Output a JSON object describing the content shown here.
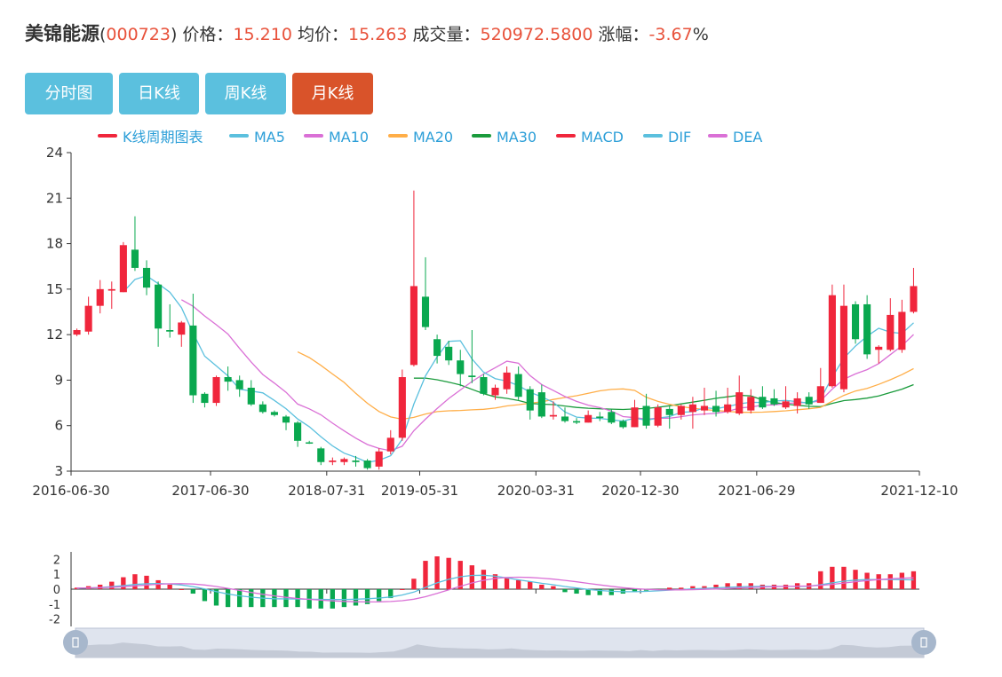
{
  "header": {
    "name": "美锦能源",
    "open_paren": "(",
    "code": "000723",
    "close_paren": ")",
    "price_label": "价格：",
    "price": "15.210",
    "avg_label": "均价：",
    "avg": "15.263",
    "volume_label": "成交量：",
    "volume": "520972.5800",
    "change_label": "涨幅：",
    "change": "-3.67",
    "change_unit": "%"
  },
  "tabs": [
    {
      "label": "分时图",
      "active": false
    },
    {
      "label": "日K线",
      "active": false
    },
    {
      "label": "周K线",
      "active": false
    },
    {
      "label": "月K线",
      "active": true
    }
  ],
  "colors": {
    "up": "#f0263c",
    "down": "#0aa84f",
    "ma5": "#5bc0de",
    "ma10": "#da70d6",
    "ma20": "#ffae48",
    "ma30": "#1a9b3c",
    "dif": "#5bc0de",
    "dea": "#da70d6",
    "tab_active": "#d9532a",
    "tab": "#5bc0de"
  },
  "chart_data": [
    {
      "type": "candlestick",
      "legend": [
        "K线周期图表",
        "MA5",
        "MA10",
        "MA20",
        "MA30",
        "MACD",
        "DIF",
        "DEA"
      ],
      "ylim": [
        3,
        24
      ],
      "yticks": [
        3,
        6,
        9,
        12,
        15,
        18,
        21,
        24
      ],
      "xtick_labels": [
        "2016-06-30",
        "2017-06-30",
        "2018-07-31",
        "2019-05-31",
        "2020-03-31",
        "2020-12-30",
        "2021-06-29",
        "2021-12-10"
      ],
      "xtick_index": [
        0,
        12,
        22,
        30,
        40,
        49,
        59,
        70
      ],
      "candles": [
        [
          12.0,
          12.3,
          11.9,
          12.4
        ],
        [
          12.2,
          13.9,
          12.0,
          14.5
        ],
        [
          13.9,
          15.0,
          13.4,
          15.6
        ],
        [
          14.9,
          15.0,
          13.7,
          15.5
        ],
        [
          14.8,
          17.9,
          14.8,
          18.1
        ],
        [
          17.6,
          16.4,
          16.2,
          19.8
        ],
        [
          16.4,
          15.1,
          14.6,
          16.9
        ],
        [
          15.3,
          12.4,
          11.2,
          15.5
        ],
        [
          12.3,
          12.2,
          11.8,
          14.0
        ],
        [
          12.0,
          12.8,
          11.2,
          12.9
        ],
        [
          12.6,
          8.0,
          7.5,
          14.7
        ],
        [
          8.1,
          7.5,
          7.2,
          8.2
        ],
        [
          7.5,
          9.2,
          7.3,
          9.3
        ],
        [
          9.2,
          8.9,
          8.3,
          9.9
        ],
        [
          9.0,
          8.4,
          7.9,
          9.3
        ],
        [
          8.5,
          7.4,
          7.3,
          9.0
        ],
        [
          7.4,
          6.9,
          6.8,
          7.6
        ],
        [
          6.9,
          6.7,
          6.6,
          7.0
        ],
        [
          6.6,
          6.2,
          5.7,
          6.7
        ],
        [
          6.2,
          5.0,
          4.6,
          6.3
        ],
        [
          4.9,
          4.85,
          4.8,
          5.0
        ],
        [
          4.5,
          3.6,
          3.4,
          4.6
        ],
        [
          3.6,
          3.7,
          3.4,
          3.9
        ],
        [
          3.6,
          3.8,
          3.4,
          3.9
        ],
        [
          3.7,
          3.6,
          3.3,
          4.0
        ],
        [
          3.7,
          3.2,
          3.1,
          3.8
        ],
        [
          3.3,
          4.3,
          3.1,
          4.5
        ],
        [
          4.3,
          5.2,
          4.1,
          5.7
        ],
        [
          5.2,
          9.2,
          5.0,
          9.7
        ],
        [
          10.0,
          15.2,
          9.9,
          21.5
        ],
        [
          14.5,
          12.5,
          12.3,
          17.1
        ],
        [
          11.7,
          10.6,
          10.1,
          12.0
        ],
        [
          11.2,
          10.3,
          10.0,
          11.6
        ],
        [
          10.3,
          9.4,
          8.6,
          11.0
        ],
        [
          9.3,
          9.2,
          8.8,
          12.3
        ],
        [
          9.2,
          8.1,
          8.0,
          9.4
        ],
        [
          8.0,
          8.5,
          7.7,
          8.7
        ],
        [
          8.4,
          9.5,
          8.1,
          9.9
        ],
        [
          9.4,
          7.9,
          7.7,
          9.9
        ],
        [
          8.4,
          7.0,
          6.4,
          8.6
        ],
        [
          8.2,
          6.6,
          6.5,
          8.7
        ],
        [
          6.6,
          6.7,
          6.4,
          7.6
        ],
        [
          6.6,
          6.3,
          6.2,
          7.2
        ],
        [
          6.3,
          6.2,
          6.1,
          6.5
        ],
        [
          6.2,
          6.7,
          6.2,
          7.0
        ],
        [
          6.6,
          6.5,
          6.3,
          6.9
        ],
        [
          6.9,
          6.2,
          6.1,
          7.1
        ],
        [
          6.3,
          5.9,
          5.8,
          6.4
        ],
        [
          5.9,
          7.2,
          5.9,
          7.7
        ],
        [
          7.3,
          6.0,
          5.8,
          8.1
        ],
        [
          6.0,
          7.2,
          5.9,
          7.4
        ],
        [
          7.1,
          6.7,
          5.8,
          7.3
        ],
        [
          6.7,
          7.3,
          6.4,
          7.4
        ],
        [
          6.9,
          7.4,
          5.8,
          7.9
        ],
        [
          7.0,
          7.3,
          6.7,
          8.5
        ],
        [
          7.3,
          6.9,
          6.6,
          8.3
        ],
        [
          6.9,
          7.4,
          6.8,
          8.5
        ],
        [
          6.8,
          8.2,
          6.7,
          9.3
        ],
        [
          7.0,
          7.9,
          6.8,
          8.4
        ],
        [
          7.9,
          7.2,
          7.1,
          8.6
        ],
        [
          7.8,
          7.4,
          7.3,
          8.4
        ],
        [
          7.2,
          7.6,
          7.1,
          8.6
        ],
        [
          7.3,
          7.8,
          6.8,
          8.2
        ],
        [
          7.9,
          7.4,
          7.1,
          8.2
        ],
        [
          7.5,
          8.6,
          7.5,
          9.8
        ],
        [
          8.6,
          14.6,
          8.5,
          15.3
        ],
        [
          8.4,
          13.9,
          8.2,
          15.3
        ],
        [
          14.0,
          11.7,
          11.4,
          14.2
        ],
        [
          14.0,
          10.7,
          10.4,
          14.6
        ],
        [
          11.0,
          11.2,
          10.1,
          11.3
        ],
        [
          11.0,
          13.3,
          10.9,
          14.4
        ],
        [
          11.0,
          13.5,
          10.8,
          14.3
        ],
        [
          13.5,
          15.2,
          13.4,
          16.4
        ]
      ]
    },
    {
      "type": "macd",
      "ylim": [
        -2.5,
        2.5
      ],
      "yticks": [
        2,
        1,
        0,
        -1,
        -2
      ],
      "values": [
        0.1,
        0.2,
        0.3,
        0.5,
        0.8,
        1.0,
        0.9,
        0.6,
        0.3,
        0.0,
        -0.3,
        -0.8,
        -1.1,
        -1.2,
        -1.2,
        -1.2,
        -1.2,
        -1.2,
        -1.2,
        -1.2,
        -1.3,
        -1.3,
        -1.3,
        -1.2,
        -1.1,
        -1.0,
        -0.8,
        -0.6,
        0.0,
        0.7,
        1.9,
        2.2,
        2.1,
        1.9,
        1.6,
        1.3,
        1.0,
        0.8,
        0.6,
        0.5,
        0.3,
        0.2,
        -0.2,
        -0.3,
        -0.4,
        -0.4,
        -0.4,
        -0.3,
        -0.2,
        -0.1,
        0.0,
        0.1,
        0.1,
        0.2,
        0.2,
        0.3,
        0.4,
        0.4,
        0.4,
        0.3,
        0.3,
        0.3,
        0.4,
        0.4,
        1.2,
        1.5,
        1.5,
        1.3,
        1.1,
        1.0,
        1.0,
        1.1,
        1.2
      ]
    }
  ]
}
